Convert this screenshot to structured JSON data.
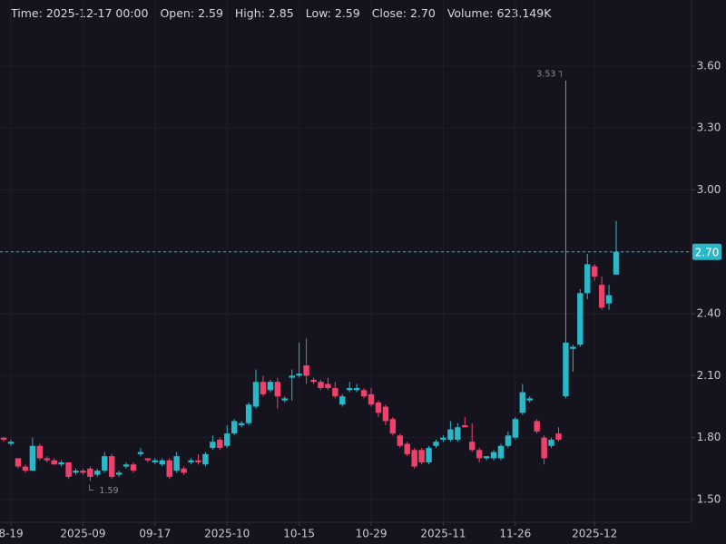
{
  "chart_data": {
    "type": "candlestick",
    "legend_items": [
      {
        "label": "Time:",
        "value": "2025-12-17 00:00"
      },
      {
        "label": "Open:",
        "value": "2.59"
      },
      {
        "label": "High:",
        "value": "2.85"
      },
      {
        "label": "Low:",
        "value": "2.59"
      },
      {
        "label": "Close:",
        "value": "2.70"
      },
      {
        "label": "Volume:",
        "value": "623.149K"
      }
    ],
    "categories": [
      null,
      "8-19",
      null,
      null,
      null,
      null,
      null,
      null,
      null,
      null,
      null,
      "2025-09",
      null,
      null,
      null,
      null,
      null,
      null,
      null,
      null,
      null,
      "09-17",
      null,
      null,
      null,
      null,
      null,
      null,
      null,
      null,
      null,
      "2025-10",
      null,
      null,
      null,
      null,
      null,
      null,
      null,
      null,
      null,
      "10-15",
      null,
      null,
      null,
      null,
      null,
      null,
      null,
      null,
      null,
      "10-29",
      null,
      null,
      null,
      null,
      null,
      null,
      null,
      null,
      null,
      "2025-11",
      null,
      null,
      null,
      null,
      null,
      null,
      null,
      null,
      null,
      "11-26",
      null,
      null,
      null,
      null,
      null,
      null,
      null,
      null,
      null,
      null,
      "2025-12",
      null,
      null,
      null
    ],
    "open": [
      1.8,
      1.77,
      1.7,
      1.66,
      1.64,
      1.76,
      1.7,
      1.69,
      1.67,
      1.68,
      1.63,
      1.64,
      1.65,
      1.62,
      1.64,
      1.71,
      1.62,
      1.66,
      1.67,
      1.72,
      1.7,
      1.68,
      1.67,
      1.69,
      1.64,
      1.65,
      1.68,
      1.69,
      1.67,
      1.75,
      1.79,
      1.76,
      1.82,
      1.86,
      1.87,
      1.95,
      2.07,
      2.03,
      2.07,
      1.98,
      2.09,
      2.1,
      2.15,
      2.08,
      2.07,
      2.06,
      2.04,
      1.96,
      2.03,
      2.03,
      2.03,
      2.01,
      1.97,
      1.95,
      1.89,
      1.81,
      1.77,
      1.74,
      1.74,
      1.68,
      1.76,
      1.79,
      1.79,
      1.79,
      1.86,
      1.78,
      1.74,
      1.7,
      1.7,
      1.7,
      1.76,
      1.8,
      1.92,
      1.98,
      1.88,
      1.8,
      1.76,
      1.82,
      2.0,
      2.23,
      2.25,
      2.5,
      2.63,
      2.54,
      2.45,
      2.59
    ],
    "high": [
      1.8,
      1.79,
      1.7,
      1.67,
      1.8,
      1.77,
      1.71,
      1.7,
      1.69,
      1.68,
      1.65,
      1.65,
      1.66,
      1.65,
      1.73,
      1.72,
      1.64,
      1.68,
      1.68,
      1.75,
      1.7,
      1.7,
      1.7,
      1.7,
      1.73,
      1.66,
      1.7,
      1.72,
      1.73,
      1.81,
      1.8,
      1.86,
      1.89,
      1.88,
      1.97,
      2.13,
      2.1,
      2.08,
      2.09,
      2.0,
      2.13,
      2.26,
      2.28,
      2.09,
      2.08,
      2.09,
      2.07,
      2.01,
      2.07,
      2.06,
      2.04,
      2.04,
      1.98,
      1.96,
      1.9,
      1.82,
      1.78,
      1.75,
      1.75,
      1.76,
      1.79,
      1.81,
      1.88,
      1.87,
      1.9,
      1.87,
      1.75,
      1.71,
      1.74,
      1.77,
      1.83,
      1.9,
      2.06,
      2.0,
      1.89,
      1.81,
      1.8,
      1.85,
      3.53,
      2.25,
      2.52,
      2.69,
      2.64,
      2.58,
      2.54,
      2.85
    ],
    "low": [
      1.78,
      1.76,
      1.65,
      1.63,
      1.64,
      1.69,
      1.68,
      1.67,
      1.66,
      1.6,
      1.62,
      1.62,
      1.59,
      1.61,
      1.63,
      1.6,
      1.61,
      1.65,
      1.63,
      1.71,
      1.68,
      1.67,
      1.66,
      1.6,
      1.63,
      1.62,
      1.67,
      1.67,
      1.66,
      1.74,
      1.74,
      1.75,
      1.81,
      1.85,
      1.86,
      1.94,
      2.0,
      2.02,
      1.94,
      1.97,
      1.98,
      2.09,
      2.06,
      2.06,
      2.03,
      2.03,
      1.99,
      1.95,
      2.02,
      2.02,
      1.99,
      1.95,
      1.9,
      1.86,
      1.81,
      1.75,
      1.71,
      1.65,
      1.67,
      1.67,
      1.75,
      1.78,
      1.78,
      1.78,
      1.85,
      1.73,
      1.68,
      1.69,
      1.69,
      1.69,
      1.75,
      1.79,
      1.91,
      1.97,
      1.82,
      1.67,
      1.75,
      1.78,
      1.99,
      2.12,
      2.24,
      2.47,
      2.56,
      2.42,
      2.42,
      2.59
    ],
    "close": [
      1.79,
      1.78,
      1.66,
      1.64,
      1.76,
      1.7,
      1.69,
      1.67,
      1.68,
      1.61,
      1.64,
      1.63,
      1.61,
      1.64,
      1.71,
      1.61,
      1.63,
      1.67,
      1.64,
      1.73,
      1.69,
      1.69,
      1.69,
      1.61,
      1.71,
      1.63,
      1.69,
      1.68,
      1.72,
      1.78,
      1.75,
      1.82,
      1.88,
      1.87,
      1.96,
      2.07,
      2.01,
      2.07,
      2.0,
      1.99,
      2.1,
      2.11,
      2.1,
      2.07,
      2.04,
      2.04,
      2.0,
      2.0,
      2.04,
      2.04,
      2.0,
      1.96,
      1.92,
      1.88,
      1.82,
      1.76,
      1.72,
      1.66,
      1.68,
      1.75,
      1.78,
      1.8,
      1.84,
      1.85,
      1.85,
      1.74,
      1.7,
      1.71,
      1.73,
      1.76,
      1.81,
      1.89,
      2.02,
      1.99,
      1.83,
      1.7,
      1.79,
      1.79,
      2.26,
      2.24,
      2.5,
      2.64,
      2.58,
      2.43,
      2.49,
      2.7
    ],
    "up_color": "#2ab8c8",
    "down_color": "#f0416c",
    "ylim": [
      1.39,
      3.92
    ],
    "yticks": [
      {
        "value": 1.5,
        "label": "1.50"
      },
      {
        "value": 1.8,
        "label": "1.80"
      },
      {
        "value": 2.1,
        "label": "2.10"
      },
      {
        "value": 2.4,
        "label": "2.40"
      },
      {
        "value": 2.7,
        "label": "2.70"
      },
      {
        "value": 3.0,
        "label": "3.00"
      },
      {
        "value": 3.3,
        "label": "3.30"
      },
      {
        "value": 3.6,
        "label": "3.60"
      }
    ],
    "grid": true,
    "last_price": {
      "value": 2.7,
      "label": "2.70"
    },
    "high_marker": {
      "value": 3.53,
      "label": "3.53"
    },
    "low_marker": {
      "value": 1.59,
      "label": "1.59"
    }
  }
}
